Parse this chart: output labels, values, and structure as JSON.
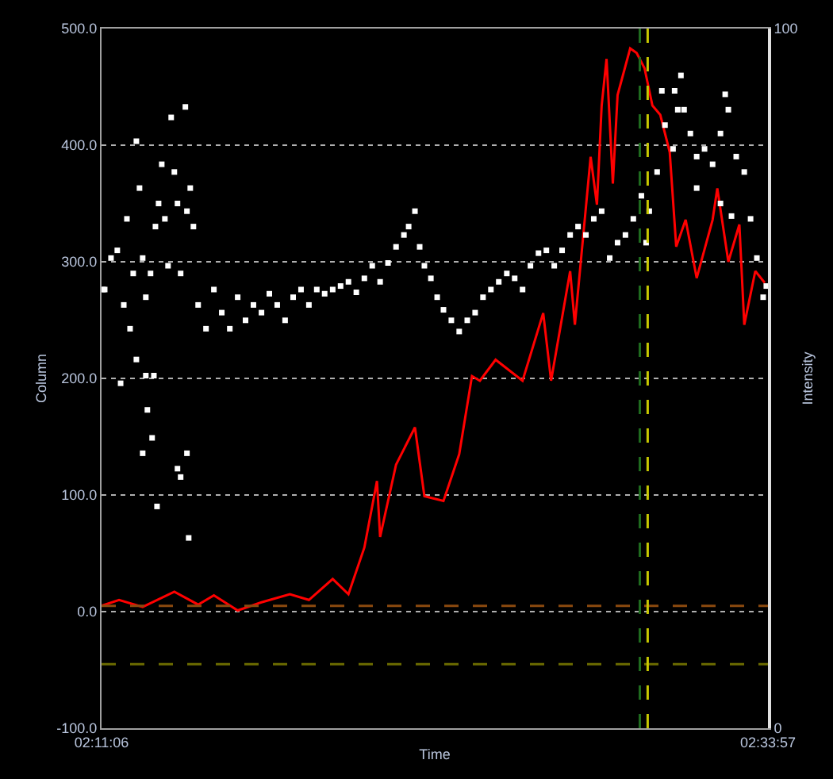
{
  "chart_data": {
    "type": "line",
    "xlabel": "Time",
    "ylabel": "Column",
    "y2label": "Intensity",
    "xlim": [
      2.185,
      2.56583
    ],
    "xticks": [
      {
        "value": 2.185,
        "label": "02:11:06"
      },
      {
        "value": 2.56583,
        "label": "02:33:57"
      }
    ],
    "ylim": [
      -100,
      500
    ],
    "yticks": [
      {
        "value": -100,
        "label": "-100.0"
      },
      {
        "value": 0,
        "label": "0.0"
      },
      {
        "value": 100,
        "label": "100.0"
      },
      {
        "value": 200,
        "label": "200.0"
      },
      {
        "value": 300,
        "label": "300.0"
      },
      {
        "value": 400,
        "label": "400.0"
      },
      {
        "value": 500,
        "label": "500.0"
      }
    ],
    "y2lim": [
      0,
      100
    ],
    "y2ticks": [
      0,
      100
    ],
    "grid": "y",
    "line_style": "solid",
    "series": [
      {
        "color": "#ff0000",
        "marker": "none",
        "x": [
          2.185,
          2.195,
          2.2085,
          2.2266,
          2.2402,
          2.2492,
          2.2628,
          2.2764,
          2.2926,
          2.3035,
          2.3171,
          2.3261,
          2.3352,
          2.3424,
          2.3442,
          2.3533,
          2.3641,
          2.3695,
          2.3804,
          2.3894,
          2.3967,
          2.4012,
          2.4102,
          2.4256,
          2.4374,
          2.4419,
          2.4528,
          2.4555,
          2.4645,
          2.4681,
          2.4708,
          2.4736,
          2.4772,
          2.4799,
          2.4871,
          2.4908,
          2.4953,
          2.4998,
          2.5043,
          2.5097,
          2.5134,
          2.5188,
          2.5251,
          2.5342,
          2.5369,
          2.5432,
          2.5495,
          2.5523,
          2.5586,
          2.564
        ],
        "values": [
          5,
          10,
          4,
          17,
          6,
          14,
          1,
          8,
          15,
          10,
          28,
          15,
          55,
          112,
          64,
          126,
          158,
          99,
          95,
          135,
          202,
          198,
          216,
          198,
          256,
          198,
          292,
          246,
          390,
          349,
          434,
          474,
          367,
          443,
          483,
          479,
          466,
          434,
          426,
          394,
          313,
          336,
          286,
          336,
          363,
          300,
          332,
          246,
          292,
          282
        ]
      },
      {
        "type": "scatter",
        "axis": "y2",
        "color": "#ffffff",
        "marker": "square",
        "x": [
          2.1859,
          2.1868,
          2.1904,
          2.194,
          2.1959,
          2.1977,
          2.1995,
          2.2013,
          2.2031,
          2.2049,
          2.2049,
          2.2067,
          2.2085,
          2.2085,
          2.2103,
          2.2103,
          2.2112,
          2.213,
          2.2139,
          2.2149,
          2.2158,
          2.2167,
          2.2176,
          2.2194,
          2.2212,
          2.223,
          2.2248,
          2.2266,
          2.2284,
          2.2284,
          2.2302,
          2.2302,
          2.2329,
          2.2338,
          2.2338,
          2.2348,
          2.2357,
          2.2375,
          2.2402,
          2.2447,
          2.2492,
          2.2537,
          2.2583,
          2.2628,
          2.2673,
          2.2718,
          2.2764,
          2.2809,
          2.2854,
          2.2899,
          2.2945,
          2.299,
          2.3035,
          2.308,
          2.3125,
          2.3171,
          2.3216,
          2.3261,
          2.3306,
          2.3352,
          2.3397,
          2.3442,
          2.3487,
          2.3533,
          2.3578,
          2.3605,
          2.3641,
          2.3668,
          2.3695,
          2.3732,
          2.3768,
          2.3804,
          2.3849,
          2.3894,
          2.394,
          2.3985,
          2.403,
          2.4075,
          2.412,
          2.4166,
          2.4211,
          2.4256,
          2.4301,
          2.4347,
          2.4392,
          2.4437,
          2.4482,
          2.4528,
          2.4573,
          2.4618,
          2.4663,
          2.4708,
          2.4754,
          2.4799,
          2.4844,
          2.4889,
          2.4935,
          2.4962,
          2.498,
          2.5025,
          2.5052,
          2.507,
          2.5116,
          2.5125,
          2.5143,
          2.5161,
          2.5179,
          2.5215,
          2.5251,
          2.5251,
          2.5296,
          2.5342,
          2.5387,
          2.5387,
          2.5414,
          2.5432,
          2.545,
          2.5477,
          2.5523,
          2.5559,
          2.5595,
          2.5631,
          2.5649
        ],
        "values": [
          62.7,
          62.7,
          67.2,
          68.3,
          49.3,
          60.5,
          72.8,
          57.1,
          65.0,
          83.9,
          52.7,
          77.2,
          67.2,
          39.3,
          61.6,
          50.4,
          45.5,
          65.0,
          41.5,
          50.4,
          71.7,
          31.7,
          75.0,
          80.6,
          72.8,
          66.1,
          87.3,
          79.5,
          75.0,
          37.1,
          65.0,
          35.9,
          88.8,
          73.9,
          39.3,
          27.2,
          77.2,
          71.7,
          60.5,
          57.1,
          62.7,
          59.4,
          57.1,
          61.6,
          58.3,
          60.5,
          59.4,
          62.1,
          60.5,
          58.3,
          61.6,
          62.7,
          60.5,
          62.7,
          62.1,
          62.7,
          63.2,
          63.8,
          62.3,
          64.3,
          66.1,
          63.8,
          66.5,
          68.8,
          70.5,
          71.7,
          73.9,
          68.8,
          66.1,
          64.3,
          61.6,
          59.8,
          58.3,
          56.7,
          58.3,
          59.4,
          61.6,
          62.7,
          63.8,
          65.0,
          64.3,
          62.7,
          66.1,
          67.9,
          68.3,
          66.1,
          68.3,
          70.5,
          71.7,
          70.5,
          72.8,
          73.9,
          67.2,
          69.4,
          70.5,
          72.8,
          76.1,
          69.4,
          73.9,
          79.5,
          91.1,
          86.2,
          82.8,
          91.1,
          88.4,
          93.3,
          88.4,
          85.0,
          81.7,
          77.2,
          82.8,
          80.6,
          85.0,
          75.0,
          90.6,
          88.4,
          73.2,
          81.7,
          79.5,
          72.8,
          67.2,
          61.6,
          63.2
        ]
      }
    ],
    "ref_lines": [
      {
        "axis": "y",
        "value": 5,
        "color": "#8b4a0f",
        "line_style": "dashed"
      },
      {
        "axis": "y",
        "value": -45,
        "color": "#6b6b00",
        "line_style": "dashed"
      },
      {
        "axis": "x",
        "value": 2.4926,
        "color": "#1f6b1f",
        "line_style": "dashed"
      },
      {
        "axis": "x",
        "value": 2.4971,
        "color": "#c8c800",
        "line_style": "dashed"
      }
    ]
  }
}
